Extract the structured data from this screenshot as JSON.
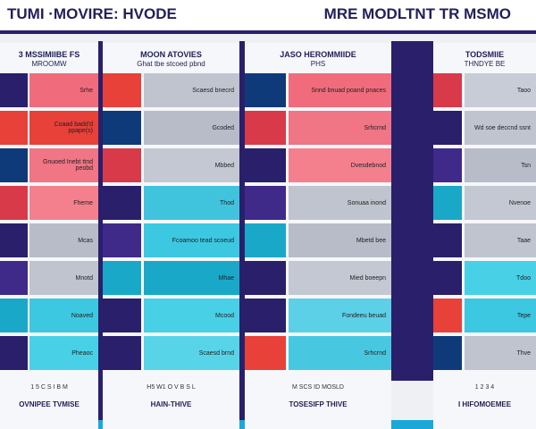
{
  "header": {
    "left_title": "TUMI ·MOVIRE: HVODE",
    "right_title": "MRE MODLTNT TR MSMO"
  },
  "panels": [
    {
      "title": "3 MSSIMIIBE FS",
      "subtitle": "MROOMW",
      "rows": [
        "Srhe",
        "Coaad badd'd ppape(s)",
        "Gnuoed Inebt ttnd peobd",
        "Fheme",
        "Mcas",
        "Mnotd",
        "Noaved",
        "Pheaoc"
      ],
      "footer_ticks": "1 5 C S I B M",
      "footer": "OVNIPEE TVMISE"
    },
    {
      "title": "MOON ATOVIES",
      "subtitle": "Ghat tbe stcoed pbnd",
      "rows": [
        "Scaesd bnecrd",
        "Gcoded",
        "Mbbed",
        "Thod",
        "Fcoamoo tead scoeud",
        "Mhae",
        "Mcood",
        "Scaesd brnd"
      ],
      "footer_ticks": "H5 W1 O V B S L",
      "footer": "HAIN-THIVE"
    },
    {
      "title": "JASO HEROMMIIDE",
      "subtitle": "PHS",
      "rows": [
        "Snnd bnuad poand pnaces",
        "Srhcrnd",
        "Dvesdebnod",
        "Sonuaa inond",
        "Mbetd bee",
        "Mied boeepn",
        "Fondeeu beuad",
        "Srhcrnd"
      ],
      "footer_ticks": "M SCS ID MOSLD",
      "footer": "TOSESIFP THIVE"
    },
    {
      "title": "TODSMIIE",
      "subtitle": "THNDYE BE",
      "rows": [
        "Taoo",
        "Wd soe deccnd ssnt",
        "Tsn",
        "Nvenoe",
        "Taae",
        "Tdoo",
        "Tepe",
        "Thve"
      ],
      "footer_ticks": "1 2 3 4",
      "footer": "I HIFOMOEMEE"
    }
  ]
}
